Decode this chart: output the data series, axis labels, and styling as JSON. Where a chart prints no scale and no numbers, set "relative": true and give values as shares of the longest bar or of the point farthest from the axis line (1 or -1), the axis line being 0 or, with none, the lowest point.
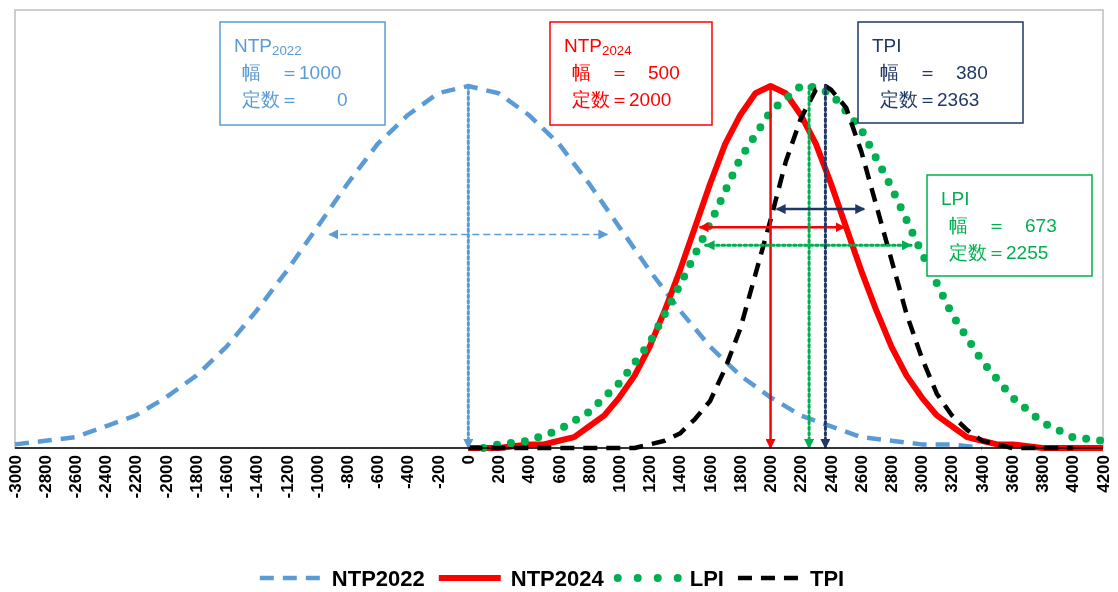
{
  "chart_data": {
    "type": "line",
    "relative": true,
    "xlim": [
      -3000,
      4200
    ],
    "xticks": [
      -3000,
      -2800,
      -2600,
      -2400,
      -2200,
      -2000,
      -1800,
      -1600,
      -1400,
      -1200,
      -1000,
      -800,
      -600,
      -400,
      -200,
      0,
      200,
      400,
      600,
      800,
      1000,
      1200,
      1400,
      1600,
      1800,
      2000,
      2200,
      2400,
      2600,
      2800,
      3000,
      3200,
      3400,
      3600,
      3800,
      4000,
      4200
    ],
    "legend": "bottom",
    "series": [
      {
        "name": "NTP2022",
        "color": "#5b9bd5",
        "line_style": "dashed",
        "x": [
          -3000,
          -2800,
          -2600,
          -2400,
          -2200,
          -2000,
          -1800,
          -1600,
          -1400,
          -1200,
          -1000,
          -800,
          -600,
          -400,
          -200,
          0,
          200,
          400,
          600,
          800,
          1000,
          1200,
          1400,
          1600,
          1800,
          2000,
          2200,
          2400,
          2600,
          2800,
          3000,
          3200,
          3400
        ],
        "values": [
          0.01,
          0.02,
          0.03,
          0.06,
          0.09,
          0.14,
          0.2,
          0.28,
          0.38,
          0.49,
          0.61,
          0.73,
          0.84,
          0.92,
          0.98,
          1,
          0.98,
          0.92,
          0.84,
          0.73,
          0.61,
          0.49,
          0.38,
          0.28,
          0.2,
          0.14,
          0.09,
          0.06,
          0.03,
          0.02,
          0.01,
          0.01,
          0
        ]
      },
      {
        "name": "NTP2024",
        "color": "#ff0000",
        "line_style": "solid",
        "x": [
          0,
          200,
          400,
          500,
          600,
          700,
          800,
          900,
          1000,
          1100,
          1200,
          1300,
          1400,
          1500,
          1600,
          1700,
          1800,
          1900,
          2000,
          2100,
          2200,
          2300,
          2400,
          2500,
          2600,
          2700,
          2800,
          2900,
          3000,
          3100,
          3200,
          3300,
          3400,
          3500,
          3600,
          3800,
          4000,
          4200
        ],
        "values": [
          0,
          0,
          0.01,
          0.01,
          0.02,
          0.03,
          0.06,
          0.09,
          0.14,
          0.2,
          0.28,
          0.38,
          0.49,
          0.61,
          0.73,
          0.84,
          0.92,
          0.98,
          1,
          0.98,
          0.92,
          0.84,
          0.73,
          0.61,
          0.49,
          0.38,
          0.28,
          0.2,
          0.14,
          0.09,
          0.06,
          0.03,
          0.02,
          0.01,
          0.01,
          0,
          0,
          0
        ]
      },
      {
        "name": "LPI",
        "color": "#00b050",
        "line_style": "dotted",
        "x": [
          100,
          200,
          400,
          600,
          800,
          1000,
          1200,
          1400,
          1600,
          1800,
          2000,
          2200,
          2255,
          2400,
          2600,
          2800,
          3000,
          3200,
          3400,
          3600,
          3800,
          4000,
          4200
        ],
        "values": [
          0,
          0.01,
          0.02,
          0.05,
          0.1,
          0.18,
          0.29,
          0.45,
          0.62,
          0.8,
          0.93,
          1,
          1,
          0.98,
          0.88,
          0.72,
          0.54,
          0.37,
          0.24,
          0.14,
          0.07,
          0.03,
          0.02
        ]
      },
      {
        "name": "TPI",
        "color": "#000000",
        "line_style": "dashed",
        "x": [
          0,
          500,
          1000,
          1100,
          1200,
          1300,
          1400,
          1500,
          1600,
          1700,
          1800,
          1900,
          2000,
          2100,
          2200,
          2300,
          2363,
          2400,
          2500,
          2600,
          2700,
          2800,
          2900,
          3000,
          3100,
          3200,
          3300,
          3400,
          3500,
          3600,
          3700,
          4000
        ],
        "values": [
          0,
          0,
          0,
          0,
          0.01,
          0.02,
          0.04,
          0.08,
          0.13,
          0.22,
          0.33,
          0.48,
          0.63,
          0.79,
          0.91,
          0.99,
          1,
          0.99,
          0.94,
          0.82,
          0.67,
          0.52,
          0.37,
          0.25,
          0.15,
          0.09,
          0.05,
          0.02,
          0.01,
          0,
          0,
          0
        ]
      },
      {
        "color": "#5b9bd5",
        "line_style": "dotted",
        "x": [
          0,
          0
        ],
        "values": [
          1,
          0
        ]
      },
      {
        "color": "#5b9bd5",
        "line_style": "dashed",
        "x": [
          -920,
          920
        ],
        "values": [
          0.59,
          0.59
        ]
      },
      {
        "color": "#ff0000",
        "line_style": "solid",
        "x": [
          2000,
          2000
        ],
        "values": [
          1,
          0
        ]
      },
      {
        "color": "#ff0000",
        "line_style": "solid",
        "x": [
          1530,
          2490
        ],
        "values": [
          0.61,
          0.61
        ]
      },
      {
        "color": "#00b050",
        "line_style": "dotted",
        "x": [
          2255,
          2255
        ],
        "values": [
          1,
          0
        ]
      },
      {
        "color": "#00b050",
        "line_style": "dotted",
        "x": [
          1570,
          2930
        ],
        "values": [
          0.56,
          0.56
        ]
      },
      {
        "color": "#1f3864",
        "line_style": "dotted",
        "x": [
          2363,
          2363
        ],
        "values": [
          1,
          0
        ]
      },
      {
        "color": "#1f3864",
        "line_style": "solid",
        "x": [
          2040,
          2620
        ],
        "values": [
          0.66,
          0.66
        ]
      }
    ],
    "annotations": [
      "NTP$_{2022}$\n幅　＝1000\n定数＝　　0",
      "NTP$_{2024}$\n幅　＝　500\n定数＝2000",
      "LPI\n幅　＝　673\n定数＝2255",
      "TPI\n幅　＝　380\n定数＝2363"
    ]
  }
}
